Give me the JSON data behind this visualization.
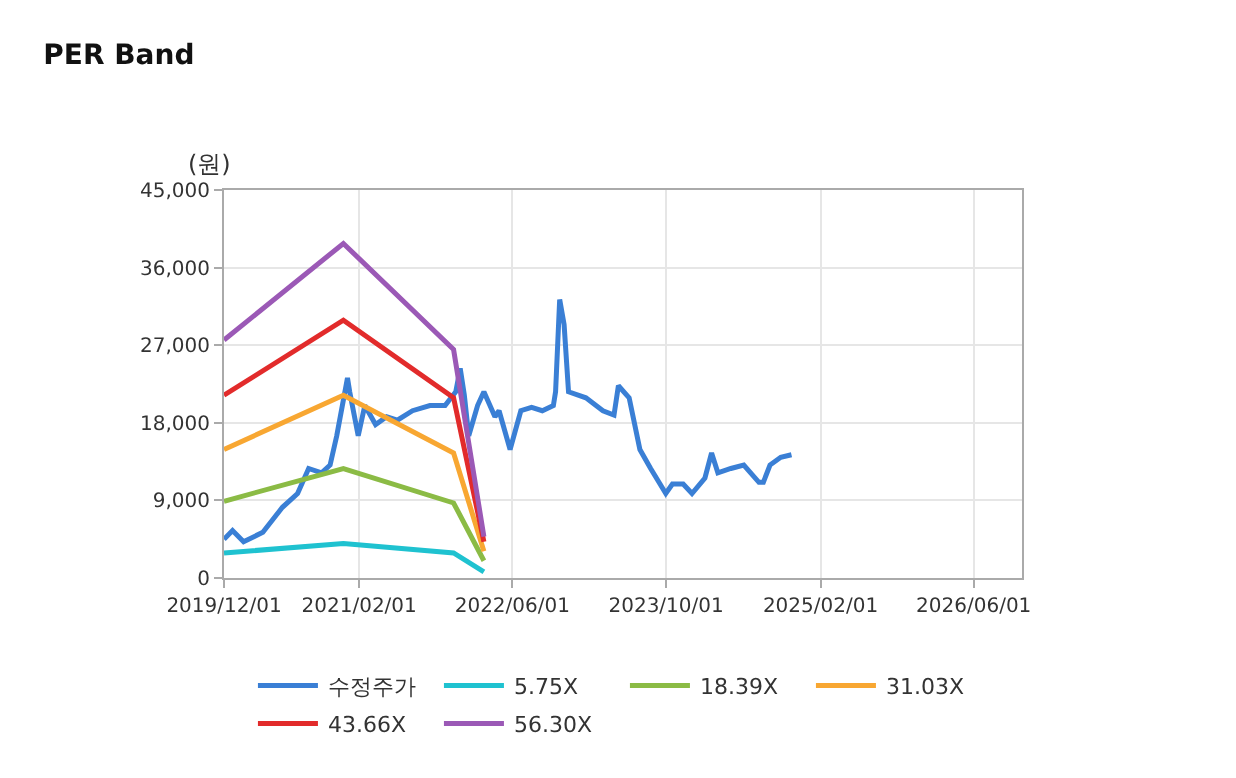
{
  "chart_data": {
    "type": "line",
    "title": "PER Band",
    "ylabel": "(원)",
    "xlim": [
      "2019-12-01",
      "2026-11-01"
    ],
    "xticks": [
      {
        "value": "2019-12-01",
        "label": "2019/12/01"
      },
      {
        "value": "2021-02-01",
        "label": "2021/02/01"
      },
      {
        "value": "2022-06-01",
        "label": "2022/06/01"
      },
      {
        "value": "2023-10-01",
        "label": "2023/10/01"
      },
      {
        "value": "2025-02-01",
        "label": "2025/02/01"
      },
      {
        "value": "2026-06-01",
        "label": "2026/06/01"
      }
    ],
    "ylim": [
      0,
      45000
    ],
    "yticks": [
      {
        "value": 0,
        "label": "0"
      },
      {
        "value": 9000,
        "label": "9,000"
      },
      {
        "value": 18000,
        "label": "18,000"
      },
      {
        "value": 27000,
        "label": "27,000"
      },
      {
        "value": 36000,
        "label": "36,000"
      },
      {
        "value": 45000,
        "label": "45,000"
      }
    ],
    "grid": true,
    "legend": "bottom",
    "marker": "none",
    "line_style": "solid",
    "series": [
      {
        "name": "수정주가",
        "color": "#3a7fd5",
        "x": [
          "2019-12-01",
          "2019-12-28",
          "2020-02-01",
          "2020-04-02",
          "2020-06-03",
          "2020-07-21",
          "2020-08-25",
          "2020-10-05",
          "2020-11-01",
          "2020-11-22",
          "2020-12-26",
          "2021-01-02",
          "2021-01-29",
          "2021-02-19",
          "2021-03-25",
          "2021-04-29",
          "2021-06-02",
          "2021-07-20",
          "2021-09-13",
          "2021-10-31",
          "2021-12-04",
          "2021-12-18",
          "2021-12-31",
          "2022-01-14",
          "2022-02-11",
          "2022-03-03",
          "2022-04-07",
          "2022-04-20",
          "2022-05-25",
          "2022-06-28",
          "2022-08-01",
          "2022-09-04",
          "2022-10-09",
          "2022-10-16",
          "2022-10-29",
          "2022-11-12",
          "2022-11-26",
          "2023-01-20",
          "2023-03-15",
          "2023-04-19",
          "2023-05-03",
          "2023-06-06",
          "2023-07-10",
          "2023-08-13",
          "2023-09-30",
          "2023-10-21",
          "2023-11-24",
          "2023-12-22",
          "2024-02-01",
          "2024-02-22",
          "2024-03-13",
          "2024-04-23",
          "2024-06-03",
          "2024-07-21",
          "2024-08-04",
          "2024-08-25",
          "2024-09-28",
          "2024-11-01"
        ],
        "values": [
          4500,
          5500,
          4200,
          5300,
          8200,
          9800,
          12700,
          12200,
          13100,
          16500,
          23200,
          21600,
          16500,
          20000,
          17800,
          18700,
          18300,
          19400,
          20000,
          20000,
          21600,
          24300,
          21200,
          16500,
          20000,
          21600,
          18700,
          19400,
          14900,
          19400,
          19800,
          19400,
          20000,
          21600,
          32300,
          29400,
          21600,
          20900,
          19400,
          18900,
          22300,
          20900,
          14900,
          12700,
          9800,
          10900,
          10900,
          9800,
          11600,
          14500,
          12200,
          12700,
          13100,
          11100,
          11100,
          13100,
          14000,
          14300
        ]
      },
      {
        "name": "5.75X",
        "color": "#1fc2d0",
        "x": [
          "2019-12-01",
          "2020-12-13",
          "2021-11-27",
          "2022-03-03"
        ],
        "values": [
          2900,
          4000,
          2900,
          700
        ]
      },
      {
        "name": "18.39X",
        "color": "#8bbb45",
        "x": [
          "2019-12-01",
          "2020-12-13",
          "2021-11-27",
          "2022-03-03"
        ],
        "values": [
          8900,
          12700,
          8700,
          2000
        ]
      },
      {
        "name": "31.03X",
        "color": "#f8a732",
        "x": [
          "2019-12-01",
          "2020-12-13",
          "2021-11-27",
          "2022-03-03"
        ],
        "values": [
          14900,
          21200,
          14500,
          3100
        ]
      },
      {
        "name": "43.66X",
        "color": "#e22b2b",
        "x": [
          "2019-12-01",
          "2020-12-13",
          "2021-11-27",
          "2022-03-03"
        ],
        "values": [
          21200,
          29900,
          20900,
          4200
        ]
      },
      {
        "name": "56.30X",
        "color": "#9b59b6",
        "x": [
          "2019-12-01",
          "2020-12-13",
          "2021-11-27",
          "2022-03-03"
        ],
        "values": [
          27600,
          38800,
          26500,
          4800
        ]
      }
    ]
  }
}
